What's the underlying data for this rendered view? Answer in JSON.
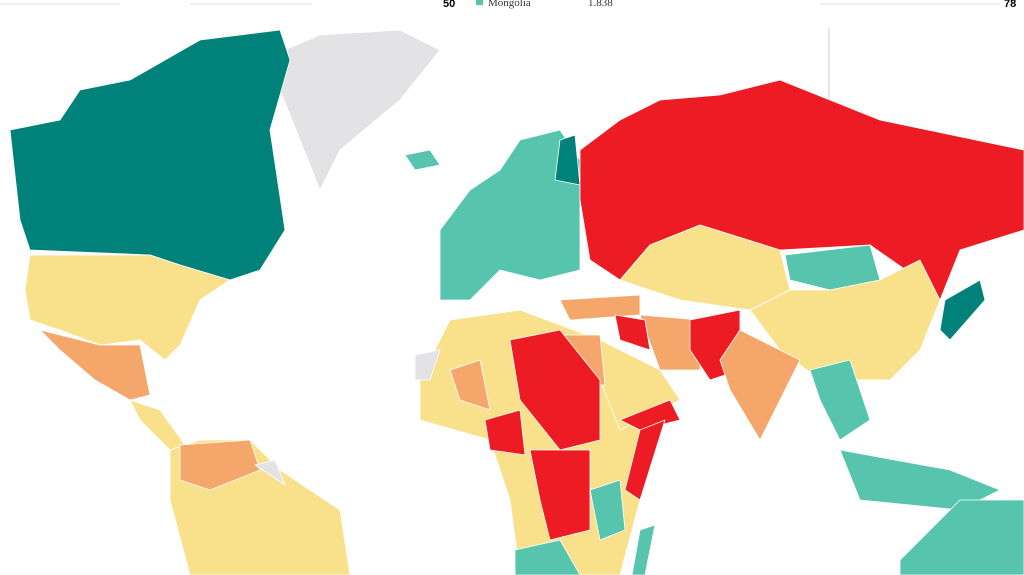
{
  "header": {
    "left_number": "50",
    "legend_name": "Mongolia",
    "legend_value": "1.838",
    "right_number": "78"
  }
}
